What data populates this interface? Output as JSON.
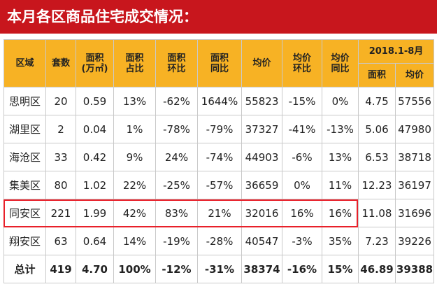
{
  "header": {
    "title": "本月各区商品住宅成交情况："
  },
  "table": {
    "columns": [
      [
        "区域"
      ],
      [
        "套数"
      ],
      [
        "面积",
        "(万㎡)"
      ],
      [
        "面积",
        "占比"
      ],
      [
        "面积",
        "环比"
      ],
      [
        "面积",
        "同比"
      ],
      [
        "均价"
      ],
      [
        "均价",
        "环比"
      ],
      [
        "均价",
        "同比"
      ]
    ],
    "group": "2018.1-8月",
    "subcolumns": [
      "面积",
      "均价"
    ],
    "rows": [
      [
        "思明区",
        "20",
        "0.59",
        "13%",
        "-62%",
        "1644%",
        "55823",
        "-15%",
        "0%",
        "4.75",
        "57556"
      ],
      [
        "湖里区",
        "2",
        "0.04",
        "1%",
        "-78%",
        "-79%",
        "37327",
        "-41%",
        "-13%",
        "5.06",
        "47980"
      ],
      [
        "海沧区",
        "33",
        "0.42",
        "9%",
        "24%",
        "-74%",
        "44903",
        "-6%",
        "13%",
        "6.53",
        "38718"
      ],
      [
        "集美区",
        "80",
        "1.02",
        "22%",
        "-25%",
        "-57%",
        "36659",
        "0%",
        "11%",
        "12.23",
        "36197"
      ],
      [
        "同安区",
        "221",
        "1.99",
        "42%",
        "83%",
        "21%",
        "32016",
        "16%",
        "16%",
        "11.08",
        "31696"
      ],
      [
        "翔安区",
        "63",
        "0.64",
        "14%",
        "-19%",
        "-28%",
        "40547",
        "-3%",
        "35%",
        "7.23",
        "39226"
      ]
    ],
    "total": [
      "总计",
      "419",
      "4.70",
      "100%",
      "-12%",
      "-31%",
      "38374",
      "-16%",
      "15%",
      "46.89",
      "39388"
    ]
  }
}
